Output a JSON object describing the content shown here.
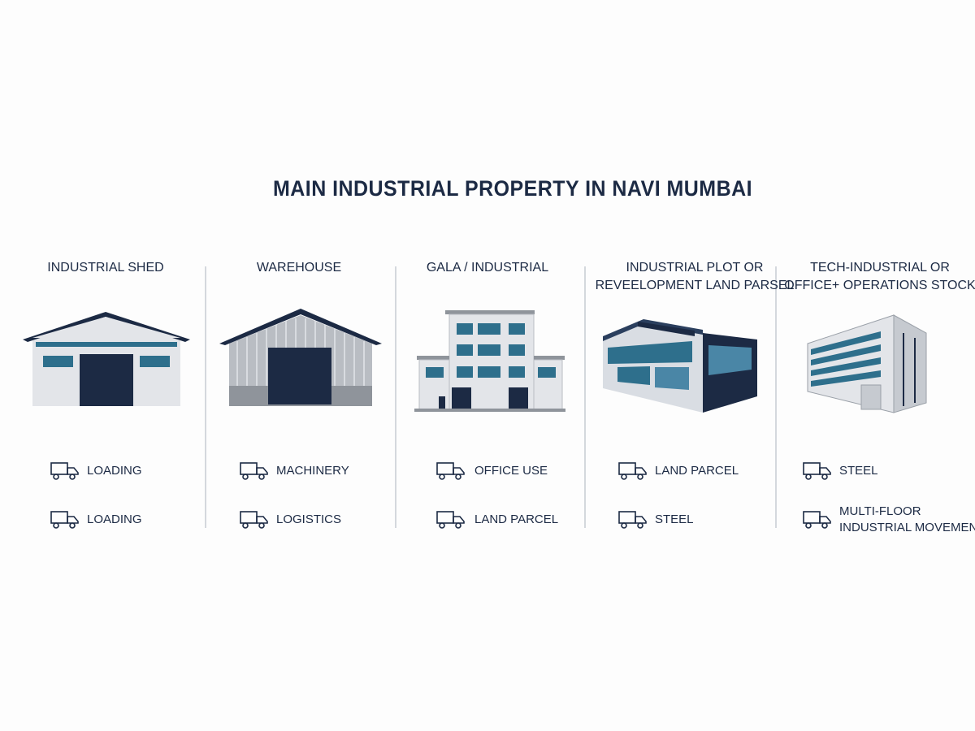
{
  "header": {
    "title": "MAIN INDUSTRIAL PROPERTY IN NAVI MUMBAI"
  },
  "columns": [
    {
      "title": [
        "INDUSTRIAL SHED"
      ],
      "features": [
        [
          "LOADING"
        ],
        [
          "LOADING"
        ]
      ]
    },
    {
      "title": [
        "WAREHOUSE"
      ],
      "features": [
        [
          "MACHINERY"
        ],
        [
          "LOGISTICS"
        ]
      ]
    },
    {
      "title": [
        "GALA / INDUSTRIAL"
      ],
      "features": [
        [
          "OFFICE USE"
        ],
        [
          "LAND PARCEL"
        ]
      ]
    },
    {
      "title": [
        "INDUSTRIAL PLOT OR",
        "REVEELOPMENT LAND PARSEL"
      ],
      "features": [
        [
          "LAND PARCEL"
        ],
        [
          "STEEL"
        ]
      ]
    },
    {
      "title": [
        "TECH-INDUSTRIAL OR",
        "OFFICE+ OPERATIONS STOCK"
      ],
      "features": [
        [
          "STEEL"
        ],
        [
          "MULTI-FLOOR",
          "INDUSTRIAL MOVEMENT"
        ]
      ]
    }
  ]
}
